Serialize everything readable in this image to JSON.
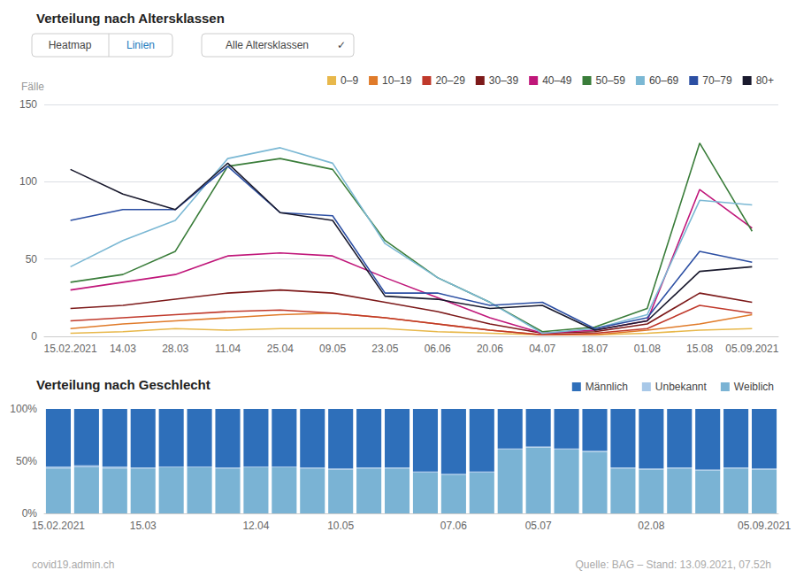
{
  "chart_data": [
    {
      "type": "line",
      "title": "Verteilung nach Altersklassen",
      "ylabel": "Fälle",
      "annotations": [
        "Heatmap",
        "Linien",
        "Alle Altersklassen",
        "✓"
      ],
      "categories": [
        "15.02.2021",
        "14.03",
        "28.03",
        "11.04",
        "25.04",
        "09.05",
        "23.05",
        "06.06",
        "20.06",
        "04.07",
        "18.07",
        "01.08",
        "15.08",
        "05.09.2021"
      ],
      "series": [
        {
          "name": "0–9",
          "color": "#e8b84b",
          "values": [
            2,
            3,
            5,
            4,
            5,
            5,
            5,
            3,
            2,
            1,
            1,
            2,
            4,
            5
          ]
        },
        {
          "name": "10–19",
          "color": "#e07b2a",
          "values": [
            5,
            8,
            10,
            12,
            14,
            15,
            12,
            8,
            4,
            1,
            1,
            4,
            8,
            14
          ]
        },
        {
          "name": "20–29",
          "color": "#c0392b",
          "values": [
            10,
            12,
            14,
            16,
            17,
            15,
            12,
            8,
            4,
            1,
            2,
            5,
            20,
            15
          ]
        },
        {
          "name": "30–39",
          "color": "#7d1a1a",
          "values": [
            18,
            20,
            24,
            28,
            30,
            28,
            22,
            16,
            8,
            2,
            3,
            8,
            28,
            22
          ]
        },
        {
          "name": "40–49",
          "color": "#c0177a",
          "values": [
            30,
            35,
            40,
            52,
            54,
            52,
            38,
            25,
            12,
            2,
            4,
            10,
            95,
            70
          ]
        },
        {
          "name": "50–59",
          "color": "#3a7d3a",
          "values": [
            35,
            40,
            55,
            110,
            115,
            108,
            62,
            38,
            22,
            3,
            6,
            18,
            125,
            68
          ]
        },
        {
          "name": "60–69",
          "color": "#7bb8d4",
          "values": [
            45,
            62,
            75,
            115,
            122,
            112,
            60,
            38,
            22,
            2,
            5,
            14,
            88,
            85
          ]
        },
        {
          "name": "70–79",
          "color": "#2c4fa3",
          "values": [
            75,
            82,
            82,
            110,
            80,
            78,
            28,
            28,
            20,
            22,
            5,
            12,
            55,
            48
          ]
        },
        {
          "name": "80+",
          "color": "#1a1a2e",
          "values": [
            108,
            92,
            82,
            112,
            80,
            75,
            26,
            24,
            18,
            20,
            4,
            10,
            42,
            45
          ]
        }
      ],
      "ylim": [
        0,
        150
      ],
      "yticks": [
        0,
        50,
        100,
        150
      ],
      "grid": true,
      "legend": "upper right"
    },
    {
      "type": "bar",
      "title": "Verteilung nach Geschlecht",
      "annotations": [
        "covid19.admin.ch",
        "Quelle: BAG – Stand: 13.09.2021, 07.52h"
      ],
      "stacked": true,
      "categories": [
        "15.02.2021",
        null,
        null,
        "15.03",
        null,
        null,
        null,
        "12.04",
        null,
        null,
        "10.05",
        null,
        null,
        null,
        "07.06",
        null,
        null,
        "05.07",
        null,
        null,
        null,
        "02.08",
        null,
        null,
        null,
        "05.09.2021"
      ],
      "series": [
        {
          "name": "Weiblich",
          "color": "#7ab3d4",
          "values": [
            0.43,
            0.44,
            0.43,
            0.43,
            0.44,
            0.44,
            0.43,
            0.44,
            0.44,
            0.43,
            0.42,
            0.43,
            0.43,
            0.39,
            0.37,
            0.39,
            0.61,
            0.63,
            0.61,
            0.59,
            0.43,
            0.42,
            0.43,
            0.41,
            0.43,
            0.42
          ]
        },
        {
          "name": "Unbekannt",
          "color": "#a8c8e8",
          "values": [
            0.02,
            0.02,
            0.02,
            0.01,
            0.01,
            0.01,
            0.01,
            0.01,
            0.01,
            0.01,
            0.01,
            0.01,
            0.01,
            0.01,
            0.01,
            0.01,
            0.01,
            0.01,
            0.01,
            0.01,
            0.01,
            0.01,
            0.01,
            0.01,
            0.01,
            0.01
          ]
        },
        {
          "name": "Männlich",
          "color": "#2e6fba",
          "values": [
            0.55,
            0.54,
            0.55,
            0.56,
            0.55,
            0.55,
            0.56,
            0.55,
            0.55,
            0.56,
            0.57,
            0.56,
            0.56,
            0.6,
            0.62,
            0.6,
            0.38,
            0.36,
            0.38,
            0.4,
            0.56,
            0.57,
            0.56,
            0.58,
            0.56,
            0.57
          ]
        }
      ],
      "ylim": [
        0,
        1
      ],
      "yticks": [
        {
          "value": 0,
          "label": "0%"
        },
        {
          "value": 0.5,
          "label": "50%"
        },
        {
          "value": 1,
          "label": "100%"
        }
      ],
      "grid": false,
      "legend": "upper right"
    }
  ]
}
